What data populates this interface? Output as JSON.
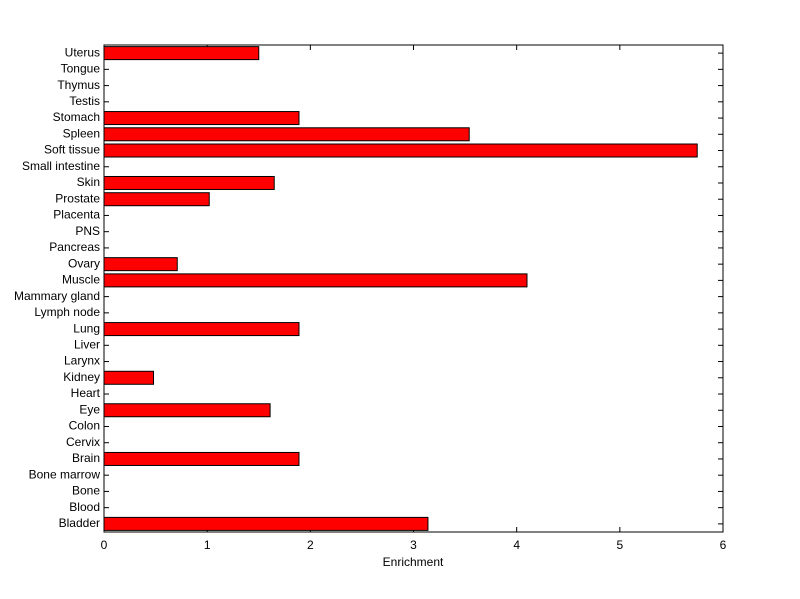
{
  "chart_data": {
    "type": "barh",
    "xlabel": "Enrichment",
    "categories": [
      "Bladder",
      "Blood",
      "Bone",
      "Bone marrow",
      "Brain",
      "Cervix",
      "Colon",
      "Eye",
      "Heart",
      "Kidney",
      "Larynx",
      "Liver",
      "Lung",
      "Lymph node",
      "Mammary gland",
      "Muscle",
      "Ovary",
      "Pancreas",
      "PNS",
      "Placenta",
      "Prostate",
      "Skin",
      "Small intestine",
      "Soft tissue",
      "Spleen",
      "Stomach",
      "Testis",
      "Thymus",
      "Tongue",
      "Uterus"
    ],
    "values": [
      3.14,
      0,
      0,
      0,
      1.89,
      0,
      0,
      1.61,
      0,
      0.48,
      0,
      0,
      1.89,
      0,
      0,
      4.1,
      0.71,
      0,
      0,
      0,
      1.02,
      1.65,
      0,
      5.75,
      3.54,
      1.89,
      0,
      0,
      0,
      1.5
    ],
    "color": "#ff0000",
    "xlim": [
      0,
      6
    ],
    "xticks": [
      0,
      1,
      2,
      3,
      4,
      5,
      6
    ]
  }
}
